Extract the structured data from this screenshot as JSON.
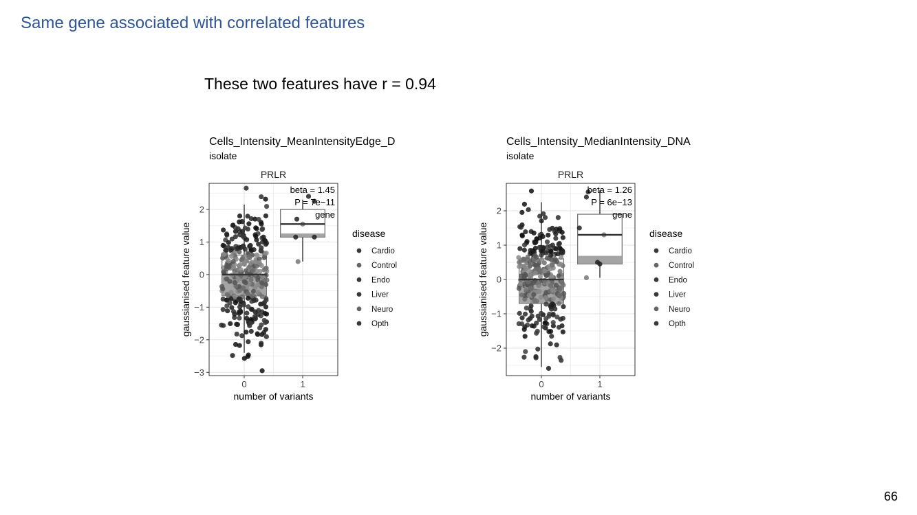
{
  "slide": {
    "title": "Same gene associated with correlated features",
    "subtitle": "These two features have r = 0.94",
    "page_number": "66"
  },
  "chart_data": [
    {
      "type": "boxplot+jitter",
      "title": "Cells_Intensity_MeanIntensityEdge_D",
      "subtitle": "isolate",
      "facet": "PRLR",
      "xlabel": "number of variants",
      "ylabel": "gaussianised feature value",
      "x_ticks": [
        0,
        1
      ],
      "y_ticks": [
        -3,
        -2,
        -1,
        0,
        1,
        2
      ],
      "xlim": [
        -0.6,
        1.6
      ],
      "ylim": [
        -3.1,
        2.8
      ],
      "annotation": [
        "beta = 1.45",
        "P = 7e−11",
        "gene"
      ],
      "legend": {
        "title": "disease",
        "position": "right",
        "entries": [
          "Cardio",
          "Control",
          "Endo",
          "Liver",
          "Neuro",
          "Opth"
        ]
      },
      "boxes": [
        {
          "x": 0,
          "q1": -0.65,
          "median": 0.0,
          "q3": 0.6,
          "whisker_low": -2.4,
          "whisker_high": 2.15
        },
        {
          "x": 1,
          "q1": 1.15,
          "median": 1.55,
          "q3": 2.0,
          "whisker_low": 0.4,
          "whisker_high": 2.3
        }
      ],
      "points_variant1": [
        [
          0.9,
          1.7
        ],
        [
          1.0,
          1.55
        ],
        [
          0.88,
          1.15
        ],
        [
          1.2,
          1.15
        ],
        [
          0.92,
          0.4
        ],
        [
          1.1,
          2.4
        ],
        [
          1.2,
          2.25
        ]
      ],
      "points_variant0": {
        "n": 340,
        "sd": 1.0
      }
    },
    {
      "type": "boxplot+jitter",
      "title": "Cells_Intensity_MedianIntensity_DNA",
      "subtitle": "isolate",
      "facet": "PRLR",
      "xlabel": "number of variants",
      "ylabel": "gaussianised feature value",
      "x_ticks": [
        0,
        1
      ],
      "y_ticks": [
        -2,
        -1,
        0,
        1,
        2
      ],
      "xlim": [
        -0.6,
        1.6
      ],
      "ylim": [
        -2.8,
        2.8
      ],
      "annotation": [
        "beta = 1.26",
        "P = 6e−13",
        "gene"
      ],
      "legend": {
        "title": "disease",
        "position": "right",
        "entries": [
          "Cardio",
          "Control",
          "Endo",
          "Liver",
          "Neuro",
          "Opth"
        ]
      },
      "boxes": [
        {
          "x": 0,
          "q1": -0.7,
          "median": 0.0,
          "q3": 0.6,
          "whisker_low": -2.55,
          "whisker_high": 2.25
        },
        {
          "x": 1,
          "q1": 0.45,
          "median": 1.3,
          "q3": 1.9,
          "whisker_low": 0.05,
          "whisker_high": 2.6
        }
      ],
      "points_variant1": [
        [
          0.65,
          1.5
        ],
        [
          1.07,
          1.3
        ],
        [
          0.96,
          0.5
        ],
        [
          1.0,
          0.45
        ],
        [
          0.77,
          0.05
        ],
        [
          0.77,
          2.4
        ],
        [
          0.8,
          2.55
        ]
      ],
      "points_variant0": {
        "n": 340,
        "sd": 1.0
      }
    }
  ]
}
